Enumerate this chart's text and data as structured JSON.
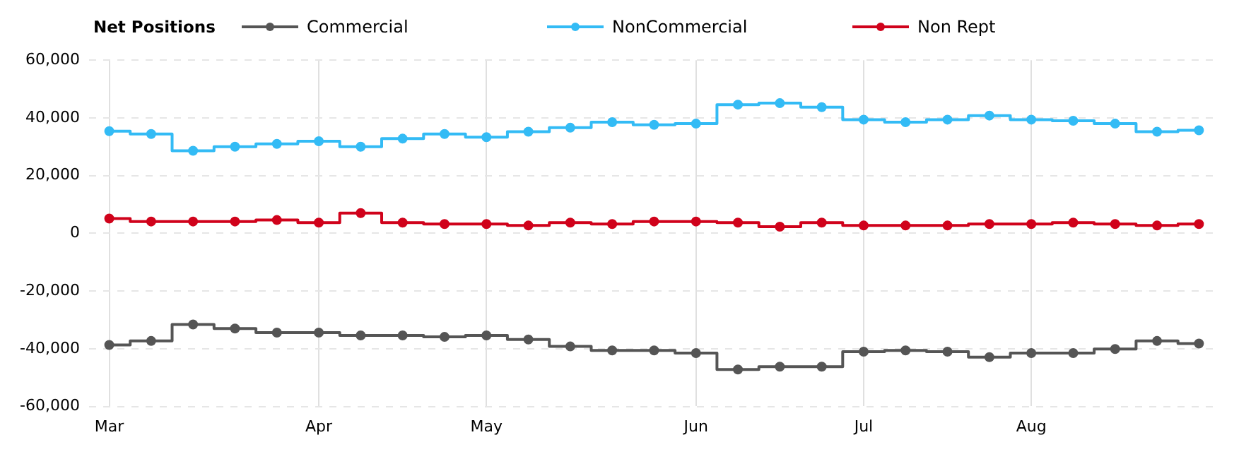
{
  "chart_data": {
    "type": "step",
    "title": "Net Positions",
    "categories": [
      "Mar",
      null,
      null,
      null,
      null,
      "Apr",
      null,
      null,
      null,
      "May",
      null,
      null,
      null,
      null,
      "Jun",
      null,
      null,
      null,
      "Jul",
      null,
      null,
      null,
      "Aug",
      null,
      null,
      null,
      null
    ],
    "series": [
      {
        "name": "Commercial",
        "color": "#555555",
        "values": [
          -38700,
          -37300,
          -31600,
          -33000,
          -34400,
          -34400,
          -35400,
          -35400,
          -35900,
          -35400,
          -36800,
          -39200,
          -40600,
          -40600,
          -41500,
          -47200,
          -46200,
          -46200,
          -41000,
          -40600,
          -41000,
          -42900,
          -41500,
          -41500,
          -40100,
          -37300,
          -38200
        ]
      },
      {
        "name": "NonCommercial",
        "color": "#33bbf5",
        "values": [
          35400,
          34400,
          28600,
          30000,
          31000,
          31900,
          30000,
          32800,
          34400,
          33300,
          35200,
          36600,
          38500,
          37600,
          38000,
          44600,
          45100,
          43700,
          39400,
          38500,
          39400,
          40800,
          39400,
          39000,
          38000,
          35200,
          35700
        ]
      },
      {
        "name": "Non Rept",
        "color": "#d0021b",
        "values": [
          5100,
          4100,
          4100,
          4100,
          4600,
          3700,
          7000,
          3700,
          3200,
          3200,
          2700,
          3700,
          3200,
          4100,
          4100,
          3700,
          2300,
          3700,
          2700,
          2700,
          2700,
          3200,
          3200,
          3700,
          3200,
          2700,
          3200
        ]
      }
    ],
    "ylim": [
      -60000,
      60000
    ],
    "yticks": [
      {
        "value": -60000,
        "label": "-60,000"
      },
      {
        "value": -40000,
        "label": "-40,000"
      },
      {
        "value": -20000,
        "label": "-20,000"
      },
      0,
      {
        "value": 20000,
        "label": "20,000"
      },
      {
        "value": 40000,
        "label": "40,000"
      },
      {
        "value": 60000,
        "label": "60,000"
      }
    ],
    "grid": true,
    "legend": "top",
    "marker": "circle",
    "line_style": "solid"
  }
}
